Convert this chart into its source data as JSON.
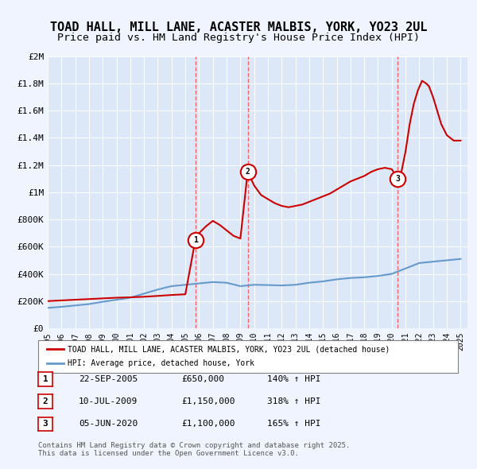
{
  "title": "TOAD HALL, MILL LANE, ACASTER MALBIS, YORK, YO23 2UL",
  "subtitle": "Price paid vs. HM Land Registry's House Price Index (HPI)",
  "title_fontsize": 11,
  "subtitle_fontsize": 9.5,
  "background_color": "#f0f4ff",
  "plot_bg_color": "#dce8f8",
  "ylim": [
    0,
    2000000
  ],
  "yticks": [
    0,
    200000,
    400000,
    600000,
    800000,
    1000000,
    1200000,
    1400000,
    1600000,
    1800000,
    2000000
  ],
  "ytick_labels": [
    "£0",
    "£200K",
    "£400K",
    "£600K",
    "£800K",
    "£1M",
    "£1.2M",
    "£1.4M",
    "£1.6M",
    "£1.8M",
    "£2M"
  ],
  "sale_dates": [
    "2005-09-22",
    "2009-07-10",
    "2020-06-05"
  ],
  "sale_prices": [
    650000,
    1150000,
    1100000
  ],
  "sale_labels": [
    "1",
    "2",
    "3"
  ],
  "sale_info": [
    {
      "label": "1",
      "date": "22-SEP-2005",
      "price": "£650,000",
      "hpi": "140% ↑ HPI"
    },
    {
      "label": "2",
      "date": "10-JUL-2009",
      "price": "£1,150,000",
      "hpi": "318% ↑ HPI"
    },
    {
      "label": "3",
      "date": "05-JUN-2020",
      "price": "£1,100,000",
      "hpi": "165% ↑ HPI"
    }
  ],
  "legend_entry1": "TOAD HALL, MILL LANE, ACASTER MALBIS, YORK, YO23 2UL (detached house)",
  "legend_entry2": "HPI: Average price, detached house, York",
  "footnote": "Contains HM Land Registry data © Crown copyright and database right 2025.\nThis data is licensed under the Open Government Licence v3.0.",
  "hpi_color": "#6699cc",
  "price_color": "#cc0000",
  "dashed_line_color": "#ff4444"
}
